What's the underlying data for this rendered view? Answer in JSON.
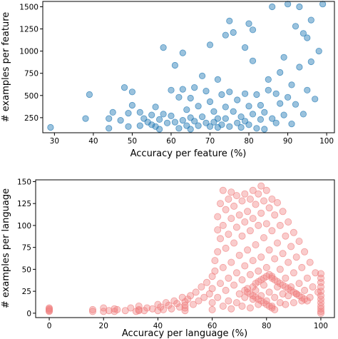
{
  "chart_data": [
    {
      "type": "scatter",
      "title": "",
      "xlabel": "Accuracy per feature (%)",
      "ylabel": "# examples per feature",
      "xlim": [
        27,
        102
      ],
      "ylim": [
        80,
        1560
      ],
      "xticks": [
        30,
        40,
        50,
        60,
        70,
        80,
        90,
        100
      ],
      "yticks": [
        250,
        500,
        750,
        1000,
        1250,
        1500
      ],
      "grid": false,
      "color": "#1f77b4",
      "point_opacity": 0.45,
      "points": [
        [
          29,
          140
        ],
        [
          38,
          240
        ],
        [
          39,
          510
        ],
        [
          44,
          130
        ],
        [
          44,
          240
        ],
        [
          45,
          310
        ],
        [
          47,
          220
        ],
        [
          48,
          590
        ],
        [
          49,
          150
        ],
        [
          49,
          300
        ],
        [
          50,
          390
        ],
        [
          50,
          540
        ],
        [
          52,
          160
        ],
        [
          52,
          310
        ],
        [
          53,
          240
        ],
        [
          54,
          200
        ],
        [
          55,
          170
        ],
        [
          55,
          280
        ],
        [
          56,
          150
        ],
        [
          56,
          370
        ],
        [
          57,
          120
        ],
        [
          57,
          230
        ],
        [
          58,
          1040
        ],
        [
          58,
          290
        ],
        [
          59,
          190
        ],
        [
          60,
          560
        ],
        [
          60,
          270
        ],
        [
          61,
          840
        ],
        [
          61,
          200
        ],
        [
          62,
          480
        ],
        [
          62,
          130
        ],
        [
          63,
          220
        ],
        [
          63,
          980
        ],
        [
          63,
          570
        ],
        [
          64,
          340
        ],
        [
          64,
          160
        ],
        [
          65,
          470
        ],
        [
          65,
          250
        ],
        [
          65,
          120
        ],
        [
          66,
          590
        ],
        [
          66,
          210
        ],
        [
          67,
          380
        ],
        [
          67,
          160
        ],
        [
          68,
          720
        ],
        [
          68,
          260
        ],
        [
          69,
          550
        ],
        [
          69,
          190
        ],
        [
          70,
          1070
        ],
        [
          70,
          430
        ],
        [
          70,
          150
        ],
        [
          71,
          320
        ],
        [
          71,
          200
        ],
        [
          72,
          680
        ],
        [
          72,
          240
        ],
        [
          72,
          140
        ],
        [
          73,
          510
        ],
        [
          73,
          170
        ],
        [
          74,
          1180
        ],
        [
          74,
          370
        ],
        [
          74,
          240
        ],
        [
          75,
          1340
        ],
        [
          75,
          540
        ],
        [
          75,
          150
        ],
        [
          76,
          1210
        ],
        [
          76,
          320
        ],
        [
          77,
          190
        ],
        [
          77,
          450
        ],
        [
          78,
          140
        ],
        [
          78,
          260
        ],
        [
          79,
          520
        ],
        [
          79,
          1040
        ],
        [
          79,
          210
        ],
        [
          80,
          1310
        ],
        [
          80,
          380
        ],
        [
          80,
          170
        ],
        [
          81,
          1240
        ],
        [
          81,
          890
        ],
        [
          81,
          290
        ],
        [
          82,
          510
        ],
        [
          82,
          130
        ],
        [
          83,
          230
        ],
        [
          83,
          390
        ],
        [
          84,
          120
        ],
        [
          84,
          310
        ],
        [
          85,
          560
        ],
        [
          85,
          680
        ],
        [
          86,
          240
        ],
        [
          86,
          1500
        ],
        [
          87,
          520
        ],
        [
          87,
          190
        ],
        [
          88,
          760
        ],
        [
          88,
          410
        ],
        [
          89,
          930
        ],
        [
          89,
          280
        ],
        [
          90,
          1530
        ],
        [
          90,
          480
        ],
        [
          91,
          180
        ],
        [
          91,
          620
        ],
        [
          92,
          1280
        ],
        [
          92,
          400
        ],
        [
          93,
          1500
        ],
        [
          93,
          820
        ],
        [
          94,
          1200
        ],
        [
          94,
          290
        ],
        [
          95,
          1150
        ],
        [
          95,
          560
        ],
        [
          96,
          1350
        ],
        [
          96,
          880
        ],
        [
          97,
          460
        ],
        [
          98,
          1000
        ],
        [
          99,
          1530
        ]
      ]
    },
    {
      "type": "scatter",
      "title": "",
      "xlabel": "Accuracy per language (%)",
      "ylabel": "# examples per language",
      "xlim": [
        -5,
        105
      ],
      "ylim": [
        -5,
        152
      ],
      "xticks": [
        0,
        20,
        40,
        60,
        80,
        100
      ],
      "yticks": [
        0,
        25,
        50,
        75,
        100,
        125,
        150
      ],
      "grid": false,
      "color": "#f08080",
      "point_opacity": 0.4,
      "points": [
        [
          0,
          2
        ],
        [
          0,
          3
        ],
        [
          0,
          4
        ],
        [
          0,
          5
        ],
        [
          0,
          6
        ],
        [
          16,
          2
        ],
        [
          16,
          4
        ],
        [
          20,
          2
        ],
        [
          20,
          6
        ],
        [
          22,
          3
        ],
        [
          24,
          2
        ],
        [
          24,
          5
        ],
        [
          25,
          4
        ],
        [
          28,
          3
        ],
        [
          30,
          6
        ],
        [
          32,
          2
        ],
        [
          33,
          3
        ],
        [
          33,
          4
        ],
        [
          33,
          8
        ],
        [
          35,
          3
        ],
        [
          36,
          6
        ],
        [
          38,
          5
        ],
        [
          40,
          3
        ],
        [
          40,
          10
        ],
        [
          41,
          7
        ],
        [
          42,
          4
        ],
        [
          43,
          12
        ],
        [
          44,
          9
        ],
        [
          45,
          5
        ],
        [
          46,
          14
        ],
        [
          47,
          11
        ],
        [
          48,
          7
        ],
        [
          49,
          18
        ],
        [
          50,
          3
        ],
        [
          50,
          6
        ],
        [
          50,
          9
        ],
        [
          50,
          13
        ],
        [
          51,
          16
        ],
        [
          52,
          20
        ],
        [
          53,
          10
        ],
        [
          54,
          24
        ],
        [
          55,
          14
        ],
        [
          56,
          30
        ],
        [
          57,
          18
        ],
        [
          58,
          35
        ],
        [
          59,
          22
        ],
        [
          60,
          4
        ],
        [
          60,
          12
        ],
        [
          60,
          28
        ],
        [
          60,
          42
        ],
        [
          61,
          48
        ],
        [
          61,
          60
        ],
        [
          62,
          18
        ],
        [
          62,
          70
        ],
        [
          62,
          95
        ],
        [
          62,
          110
        ],
        [
          63,
          34
        ],
        [
          63,
          85
        ],
        [
          63,
          125
        ],
        [
          64,
          8
        ],
        [
          64,
          52
        ],
        [
          64,
          100
        ],
        [
          64,
          140
        ],
        [
          65,
          26
        ],
        [
          65,
          74
        ],
        [
          65,
          118
        ],
        [
          66,
          14
        ],
        [
          66,
          40
        ],
        [
          66,
          90
        ],
        [
          66,
          130
        ],
        [
          67,
          5
        ],
        [
          67,
          58
        ],
        [
          67,
          108
        ],
        [
          67,
          138
        ],
        [
          68,
          32
        ],
        [
          68,
          80
        ],
        [
          68,
          122
        ],
        [
          69,
          12
        ],
        [
          69,
          46
        ],
        [
          69,
          98
        ],
        [
          69,
          134
        ],
        [
          70,
          22
        ],
        [
          70,
          66
        ],
        [
          70,
          112
        ],
        [
          71,
          8
        ],
        [
          71,
          38
        ],
        [
          71,
          88
        ],
        [
          71,
          128
        ],
        [
          72,
          18
        ],
        [
          72,
          54
        ],
        [
          72,
          104
        ],
        [
          72,
          136
        ],
        [
          73,
          28
        ],
        [
          73,
          72
        ],
        [
          73,
          116
        ],
        [
          74,
          6
        ],
        [
          74,
          44
        ],
        [
          74,
          94
        ],
        [
          74,
          130
        ],
        [
          75,
          16
        ],
        [
          75,
          60
        ],
        [
          75,
          108
        ],
        [
          75,
          140
        ],
        [
          76,
          26
        ],
        [
          76,
          78
        ],
        [
          76,
          124
        ],
        [
          77,
          10
        ],
        [
          77,
          48
        ],
        [
          77,
          100
        ],
        [
          77,
          136
        ],
        [
          78,
          20
        ],
        [
          78,
          64
        ],
        [
          78,
          114
        ],
        [
          78,
          145
        ],
        [
          79,
          32
        ],
        [
          79,
          86
        ],
        [
          79,
          128
        ],
        [
          80,
          14
        ],
        [
          80,
          52
        ],
        [
          80,
          102
        ],
        [
          80,
          140
        ],
        [
          81,
          24
        ],
        [
          81,
          72
        ],
        [
          81,
          120
        ],
        [
          82,
          8
        ],
        [
          82,
          42
        ],
        [
          82,
          94
        ],
        [
          82,
          130
        ],
        [
          83,
          18
        ],
        [
          83,
          62
        ],
        [
          83,
          112
        ],
        [
          84,
          30
        ],
        [
          84,
          80
        ],
        [
          84,
          126
        ],
        [
          85,
          12
        ],
        [
          85,
          50
        ],
        [
          85,
          100
        ],
        [
          86,
          22
        ],
        [
          86,
          68
        ],
        [
          86,
          116
        ],
        [
          87,
          10
        ],
        [
          87,
          40
        ],
        [
          87,
          88
        ],
        [
          88,
          20
        ],
        [
          88,
          58
        ],
        [
          88,
          104
        ],
        [
          89,
          30
        ],
        [
          89,
          76
        ],
        [
          90,
          12
        ],
        [
          90,
          46
        ],
        [
          90,
          92
        ],
        [
          91,
          22
        ],
        [
          91,
          64
        ],
        [
          92,
          34
        ],
        [
          92,
          82
        ],
        [
          93,
          14
        ],
        [
          93,
          52
        ],
        [
          94,
          26
        ],
        [
          94,
          70
        ],
        [
          95,
          40
        ],
        [
          96,
          18
        ],
        [
          96,
          58
        ],
        [
          97,
          30
        ],
        [
          98,
          46
        ],
        [
          99,
          24
        ],
        [
          100,
          0
        ],
        [
          100,
          2
        ],
        [
          100,
          5
        ],
        [
          100,
          8
        ],
        [
          100,
          12
        ],
        [
          100,
          16
        ],
        [
          100,
          20
        ],
        [
          100,
          25
        ],
        [
          100,
          30
        ],
        [
          100,
          35
        ],
        [
          100,
          40
        ],
        [
          100,
          45
        ],
        [
          75,
          30
        ],
        [
          76,
          34
        ],
        [
          77,
          36
        ],
        [
          78,
          38
        ],
        [
          79,
          40
        ],
        [
          80,
          42
        ],
        [
          81,
          44
        ],
        [
          82,
          40
        ],
        [
          83,
          38
        ],
        [
          84,
          36
        ],
        [
          85,
          34
        ],
        [
          86,
          32
        ],
        [
          87,
          30
        ],
        [
          88,
          28
        ],
        [
          89,
          26
        ],
        [
          90,
          24
        ],
        [
          91,
          22
        ],
        [
          92,
          20
        ],
        [
          93,
          18
        ],
        [
          94,
          16
        ],
        [
          95,
          14
        ],
        [
          72,
          26
        ],
        [
          73,
          24
        ],
        [
          74,
          22
        ],
        [
          75,
          20
        ],
        [
          76,
          18
        ],
        [
          77,
          16
        ],
        [
          78,
          14
        ],
        [
          79,
          12
        ],
        [
          80,
          10
        ],
        [
          81,
          8
        ],
        [
          82,
          6
        ],
        [
          83,
          4
        ]
      ]
    }
  ]
}
